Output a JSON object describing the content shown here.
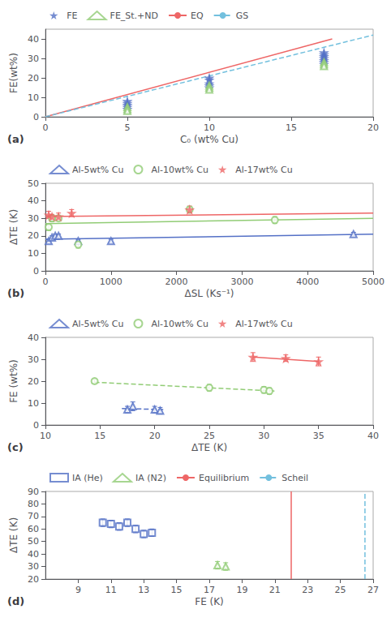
{
  "chart_data": [
    {
      "type": "scatter",
      "title": "(a)",
      "xlabel": "C₀ (wt% Cu)",
      "ylabel": "FE(wt%)",
      "xlim": [
        0,
        20
      ],
      "ylim": [
        0,
        45
      ],
      "xticks": [
        0,
        5,
        10,
        15,
        20
      ],
      "yticks": [
        0,
        10,
        20,
        30,
        40
      ],
      "grid": false,
      "legend": "upper left",
      "series": [
        {
          "name": "FE",
          "type": "scatter",
          "marker": "star",
          "color": "#5470c6",
          "x": [
            5,
            5,
            5,
            5,
            5,
            10,
            10,
            10,
            10,
            10,
            17,
            17,
            17,
            17,
            17,
            17,
            17
          ],
          "values": [
            8,
            7,
            6,
            5,
            4,
            20,
            19,
            17,
            16,
            15,
            33,
            32,
            31,
            30,
            29,
            28,
            27
          ]
        },
        {
          "name": "FE_St.+ND",
          "type": "scatter",
          "marker": "triangle-open",
          "color": "#91cc75",
          "x": [
            5,
            5,
            5,
            10,
            10,
            10,
            17,
            17,
            17
          ],
          "values": [
            5,
            4,
            3,
            16,
            15,
            14,
            28,
            27,
            26
          ]
        },
        {
          "name": "EQ",
          "type": "line",
          "line_style": "solid",
          "color": "#ee6666",
          "x": [
            0,
            17.5
          ],
          "values": [
            0,
            40
          ]
        },
        {
          "name": "GS",
          "type": "line",
          "line_style": "dashed",
          "color": "#73c0de",
          "x": [
            0,
            20
          ],
          "values": [
            0,
            42
          ]
        }
      ]
    },
    {
      "type": "scatter",
      "title": "(b)",
      "xlabel": "ΔSL (Ks⁻¹)",
      "ylabel": "ΔTE (K)",
      "xlim": [
        0,
        5000
      ],
      "ylim": [
        0,
        50
      ],
      "xticks": [
        0,
        1000,
        2000,
        3000,
        4000,
        5000
      ],
      "yticks": [
        0,
        10,
        20,
        30,
        40,
        50
      ],
      "grid": false,
      "legend": "upper left",
      "series": [
        {
          "type": "line",
          "line_style": "solid",
          "color": "#5470c6",
          "x": [
            0,
            5000
          ],
          "values": [
            18,
            21
          ]
        },
        {
          "type": "line",
          "line_style": "solid",
          "color": "#91cc75",
          "x": [
            0,
            5000
          ],
          "values": [
            27,
            30
          ]
        },
        {
          "type": "line",
          "line_style": "solid",
          "color": "#ee6666",
          "x": [
            0,
            5000
          ],
          "values": [
            31,
            33
          ]
        },
        {
          "name": "Al-5wt% Cu",
          "type": "scatter",
          "marker": "triangle-open",
          "color": "#5470c6",
          "x": [
            50,
            100,
            150,
            200,
            500,
            1000,
            4700
          ],
          "values": [
            17,
            19,
            20,
            20,
            17,
            17,
            21
          ],
          "yerr": [
            1,
            1,
            1,
            1,
            1,
            1,
            1
          ]
        },
        {
          "name": "Al-10wt% Cu",
          "type": "scatter",
          "marker": "circle-open",
          "color": "#91cc75",
          "x": [
            50,
            100,
            200,
            500,
            2200,
            3500
          ],
          "values": [
            25,
            30,
            30,
            15,
            35,
            29
          ],
          "yerr": [
            2,
            2,
            1,
            2,
            1,
            2
          ]
        },
        {
          "name": "Al-17wt% Cu",
          "type": "scatter",
          "marker": "star",
          "color": "#ee6666",
          "x": [
            50,
            100,
            200,
            400,
            2200
          ],
          "values": [
            32,
            31,
            31,
            33,
            35
          ],
          "yerr": [
            2,
            1,
            2,
            2,
            2
          ]
        }
      ]
    },
    {
      "type": "scatter",
      "title": "(c)",
      "xlabel": "ΔTE (K)",
      "ylabel": "FE (wt%)",
      "xlim": [
        10,
        40
      ],
      "ylim": [
        0,
        40
      ],
      "xticks": [
        10,
        15,
        20,
        25,
        30,
        35,
        40
      ],
      "yticks": [
        0,
        10,
        20,
        30,
        40
      ],
      "grid": false,
      "legend": "upper left",
      "series": [
        {
          "type": "line",
          "line_style": "dashed",
          "color": "#5470c6",
          "x": [
            17,
            21
          ],
          "values": [
            7.5,
            7
          ]
        },
        {
          "type": "line",
          "line_style": "dashed",
          "color": "#91cc75",
          "x": [
            14.5,
            31
          ],
          "values": [
            19.5,
            15.5
          ]
        },
        {
          "type": "line",
          "line_style": "solid",
          "color": "#ee6666",
          "x": [
            29,
            35
          ],
          "values": [
            31,
            29
          ]
        },
        {
          "name": "Al-5wt% Cu",
          "type": "scatter",
          "marker": "triangle-open",
          "color": "#5470c6",
          "x": [
            17.5,
            18,
            20,
            20.5
          ],
          "values": [
            7,
            8.5,
            7,
            6.5
          ],
          "yerr": [
            1.5,
            2,
            1.5,
            1.5
          ]
        },
        {
          "name": "Al-10wt% Cu",
          "type": "scatter",
          "marker": "circle-open",
          "color": "#91cc75",
          "x": [
            14.5,
            25,
            30,
            30.5
          ],
          "values": [
            20,
            17,
            16,
            15.5
          ],
          "yerr": [
            1,
            1.5,
            1.5,
            1.5
          ]
        },
        {
          "name": "Al-17wt% Cu",
          "type": "scatter",
          "marker": "star",
          "color": "#ee6666",
          "x": [
            29,
            32,
            35
          ],
          "values": [
            31,
            30.5,
            29
          ],
          "yerr": [
            2,
            1.5,
            2
          ]
        }
      ]
    },
    {
      "type": "scatter",
      "title": "(d)",
      "xlabel": "FE (K)",
      "ylabel": "ΔTE (K)",
      "xlim": [
        7,
        27
      ],
      "ylim": [
        20,
        90
      ],
      "xticks": [
        9,
        11,
        13,
        15,
        17,
        19,
        21,
        23,
        25,
        27
      ],
      "yticks": [
        20,
        30,
        40,
        50,
        60,
        70,
        80,
        90
      ],
      "grid": false,
      "legend": "upper left",
      "series": [
        {
          "name": "IA (He)",
          "type": "scatter",
          "marker": "square-open",
          "color": "#5470c6",
          "x": [
            10.5,
            11,
            11.5,
            12,
            12.5,
            13,
            13.5
          ],
          "values": [
            65,
            64,
            62,
            65,
            60,
            56,
            57
          ],
          "yerr": [
            3,
            3,
            3,
            3,
            3,
            3,
            3
          ]
        },
        {
          "name": "IA (N2)",
          "type": "scatter",
          "marker": "triangle-open",
          "color": "#91cc75",
          "x": [
            17.5,
            18
          ],
          "values": [
            31,
            30
          ],
          "yerr": [
            3,
            3
          ]
        },
        {
          "name": "Equilibrium",
          "type": "vline",
          "line_style": "solid",
          "color": "#ee6666",
          "x": 22
        },
        {
          "name": "Scheil",
          "type": "vline",
          "line_style": "dashed",
          "color": "#73c0de",
          "x": 26.5
        }
      ]
    }
  ]
}
